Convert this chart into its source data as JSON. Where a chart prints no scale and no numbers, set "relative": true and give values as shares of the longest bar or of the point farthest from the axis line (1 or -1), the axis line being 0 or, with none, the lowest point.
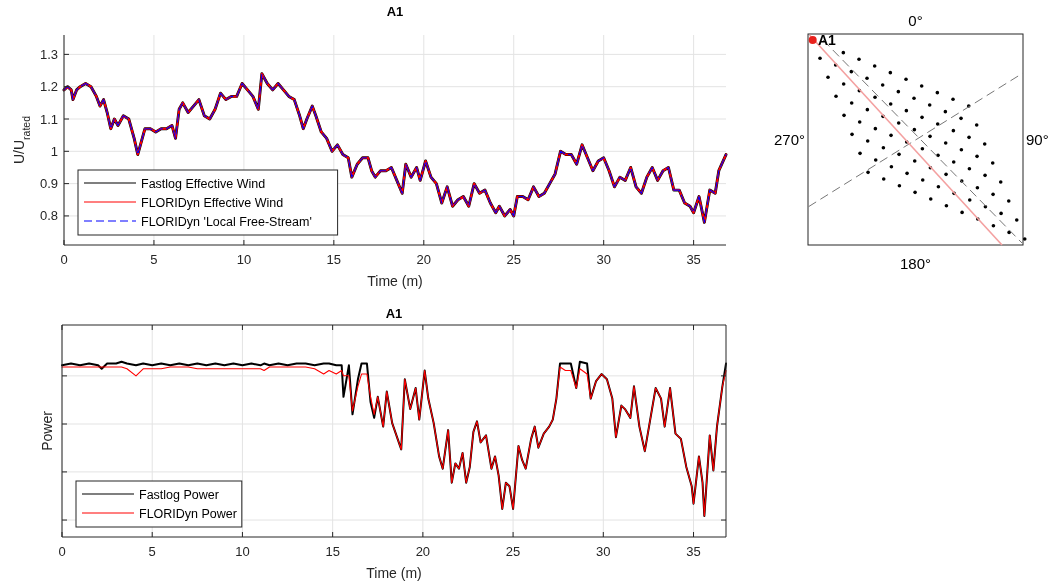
{
  "chart_data": [
    {
      "type": "line",
      "title": "A1",
      "xlabel": "Time (m)",
      "ylabel": "U/U$_{rated}$",
      "xlim": [
        0,
        36.8
      ],
      "ylim": [
        0.71,
        1.36
      ],
      "xticks": [
        0,
        5,
        10,
        15,
        20,
        25,
        30,
        35
      ],
      "yticks": [
        0.8,
        0.9,
        1,
        1.1,
        1.2,
        1.3
      ],
      "grid": true,
      "legend": "bottom left",
      "x": [
        0,
        0.2,
        0.4,
        0.5,
        0.7,
        0.9,
        1.2,
        1.5,
        1.8,
        2.0,
        2.2,
        2.4,
        2.6,
        2.8,
        3.0,
        3.3,
        3.6,
        3.9,
        4.1,
        4.3,
        4.5,
        4.8,
        5.1,
        5.4,
        5.7,
        6.0,
        6.2,
        6.4,
        6.6,
        6.9,
        7.2,
        7.5,
        7.8,
        8.1,
        8.4,
        8.7,
        9.0,
        9.3,
        9.6,
        9.9,
        10.2,
        10.5,
        10.8,
        11.0,
        11.3,
        11.6,
        11.9,
        12.2,
        12.5,
        12.8,
        13.1,
        13.3,
        13.5,
        13.8,
        14.0,
        14.3,
        14.6,
        14.9,
        15.2,
        15.5,
        15.8,
        16.0,
        16.3,
        16.6,
        16.9,
        17.1,
        17.3,
        17.6,
        17.9,
        18.2,
        18.5,
        18.8,
        19.0,
        19.3,
        19.6,
        19.8,
        20.1,
        20.4,
        20.7,
        21.0,
        21.3,
        21.6,
        21.9,
        22.2,
        22.5,
        22.8,
        23.1,
        23.4,
        23.7,
        24.0,
        24.2,
        24.5,
        24.8,
        25.0,
        25.2,
        25.5,
        25.8,
        26.1,
        26.4,
        26.7,
        27.0,
        27.3,
        27.6,
        27.9,
        28.2,
        28.5,
        28.8,
        29.1,
        29.4,
        29.7,
        30.0,
        30.3,
        30.6,
        30.9,
        31.2,
        31.5,
        31.8,
        32.1,
        32.4,
        32.7,
        33.0,
        33.3,
        33.6,
        33.9,
        34.2,
        34.5,
        34.8,
        35.0,
        35.3,
        35.6,
        35.9,
        36.2,
        36.4,
        36.8
      ],
      "series": [
        {
          "name": "Fastlog Effective Wind",
          "color": "#000000",
          "values": [
            1.19,
            1.2,
            1.19,
            1.16,
            1.19,
            1.2,
            1.21,
            1.2,
            1.17,
            1.14,
            1.16,
            1.12,
            1.07,
            1.1,
            1.08,
            1.11,
            1.1,
            1.04,
            0.99,
            1.03,
            1.07,
            1.07,
            1.06,
            1.07,
            1.07,
            1.08,
            1.04,
            1.13,
            1.15,
            1.12,
            1.14,
            1.16,
            1.11,
            1.1,
            1.13,
            1.18,
            1.16,
            1.17,
            1.17,
            1.21,
            1.19,
            1.17,
            1.13,
            1.24,
            1.21,
            1.19,
            1.21,
            1.19,
            1.17,
            1.16,
            1.11,
            1.07,
            1.1,
            1.14,
            1.11,
            1.06,
            1.04,
            1.0,
            1.02,
            0.99,
            0.98,
            0.92,
            0.96,
            0.98,
            0.98,
            0.94,
            0.92,
            0.94,
            0.94,
            0.95,
            0.91,
            0.87,
            0.96,
            0.92,
            0.95,
            0.91,
            0.97,
            0.92,
            0.9,
            0.84,
            0.89,
            0.83,
            0.85,
            0.86,
            0.83,
            0.9,
            0.87,
            0.88,
            0.84,
            0.81,
            0.83,
            0.8,
            0.82,
            0.8,
            0.86,
            0.86,
            0.85,
            0.89,
            0.86,
            0.87,
            0.9,
            0.93,
            1.0,
            0.99,
            0.99,
            0.96,
            1.02,
            0.98,
            0.94,
            0.97,
            0.98,
            0.94,
            0.89,
            0.92,
            0.91,
            0.95,
            0.89,
            0.87,
            0.92,
            0.95,
            0.91,
            0.94,
            0.95,
            0.88,
            0.88,
            0.84,
            0.83,
            0.81,
            0.86,
            0.78,
            0.88,
            0.87,
            0.94,
            0.99
          ]
        },
        {
          "name": "FLORIDyn Effective Wind",
          "color": "#ff0000",
          "values": [
            1.19,
            1.2,
            1.19,
            1.16,
            1.19,
            1.2,
            1.21,
            1.2,
            1.17,
            1.14,
            1.16,
            1.12,
            1.07,
            1.1,
            1.08,
            1.11,
            1.1,
            1.04,
            0.99,
            1.03,
            1.07,
            1.07,
            1.06,
            1.07,
            1.07,
            1.08,
            1.04,
            1.13,
            1.15,
            1.12,
            1.14,
            1.16,
            1.11,
            1.1,
            1.13,
            1.18,
            1.16,
            1.17,
            1.17,
            1.21,
            1.19,
            1.17,
            1.13,
            1.24,
            1.21,
            1.19,
            1.21,
            1.19,
            1.17,
            1.16,
            1.11,
            1.07,
            1.1,
            1.14,
            1.11,
            1.06,
            1.04,
            1.0,
            1.02,
            0.99,
            0.98,
            0.92,
            0.96,
            0.98,
            0.98,
            0.94,
            0.92,
            0.94,
            0.94,
            0.95,
            0.91,
            0.87,
            0.96,
            0.92,
            0.95,
            0.91,
            0.97,
            0.92,
            0.9,
            0.84,
            0.89,
            0.83,
            0.85,
            0.86,
            0.83,
            0.9,
            0.87,
            0.88,
            0.84,
            0.81,
            0.83,
            0.8,
            0.82,
            0.8,
            0.86,
            0.86,
            0.85,
            0.89,
            0.86,
            0.87,
            0.9,
            0.93,
            1.0,
            0.99,
            0.99,
            0.96,
            1.02,
            0.98,
            0.94,
            0.97,
            0.98,
            0.94,
            0.89,
            0.92,
            0.91,
            0.95,
            0.89,
            0.87,
            0.92,
            0.95,
            0.91,
            0.94,
            0.95,
            0.88,
            0.88,
            0.84,
            0.83,
            0.81,
            0.86,
            0.78,
            0.88,
            0.87,
            0.94,
            0.99
          ]
        },
        {
          "name": "FLORIDyn 'Local Free-Stream'",
          "color": "#0000ff",
          "line_style": "dashed",
          "values": [
            1.19,
            1.2,
            1.19,
            1.16,
            1.19,
            1.2,
            1.21,
            1.2,
            1.17,
            1.14,
            1.16,
            1.12,
            1.07,
            1.1,
            1.08,
            1.11,
            1.1,
            1.04,
            0.99,
            1.03,
            1.07,
            1.07,
            1.06,
            1.07,
            1.07,
            1.08,
            1.04,
            1.13,
            1.15,
            1.12,
            1.14,
            1.16,
            1.11,
            1.1,
            1.13,
            1.18,
            1.16,
            1.17,
            1.17,
            1.21,
            1.19,
            1.17,
            1.13,
            1.24,
            1.21,
            1.19,
            1.21,
            1.19,
            1.17,
            1.16,
            1.11,
            1.07,
            1.1,
            1.14,
            1.11,
            1.06,
            1.04,
            1.0,
            1.02,
            0.99,
            0.98,
            0.92,
            0.96,
            0.98,
            0.98,
            0.94,
            0.92,
            0.94,
            0.94,
            0.95,
            0.91,
            0.87,
            0.96,
            0.92,
            0.95,
            0.91,
            0.97,
            0.92,
            0.9,
            0.84,
            0.89,
            0.83,
            0.85,
            0.86,
            0.83,
            0.9,
            0.87,
            0.88,
            0.84,
            0.81,
            0.83,
            0.8,
            0.82,
            0.8,
            0.86,
            0.86,
            0.85,
            0.89,
            0.86,
            0.87,
            0.9,
            0.93,
            1.0,
            0.99,
            0.99,
            0.96,
            1.02,
            0.98,
            0.94,
            0.97,
            0.98,
            0.94,
            0.89,
            0.92,
            0.91,
            0.95,
            0.89,
            0.87,
            0.92,
            0.95,
            0.91,
            0.94,
            0.95,
            0.88,
            0.88,
            0.84,
            0.83,
            0.81,
            0.86,
            0.78,
            0.88,
            0.87,
            0.94,
            0.99
          ]
        }
      ]
    },
    {
      "type": "other",
      "annotations": [
        "0°",
        "90°",
        "180°",
        "270°",
        "A1"
      ]
    },
    {
      "type": "line",
      "title": "A1",
      "xlabel": "Time (m)",
      "ylabel": "Power",
      "relative": true,
      "xlim": [
        0,
        36.8
      ],
      "xticks": [
        0,
        5,
        10,
        15,
        20,
        25,
        30,
        35
      ],
      "grid": true,
      "legend": "bottom left",
      "tick_labels": "x",
      "x": [
        0,
        0.5,
        1,
        1.5,
        2,
        2.2,
        2.5,
        3,
        3.3,
        3.6,
        4.1,
        4.5,
        5,
        5.5,
        6,
        6.5,
        7,
        7.5,
        8,
        8.5,
        9,
        9.5,
        10,
        10.5,
        11,
        11.2,
        11.5,
        12,
        12.5,
        13,
        13.5,
        14,
        14.5,
        14.8,
        15.2,
        15.5,
        15.6,
        15.9,
        16.1,
        16.4,
        16.6,
        16.9,
        17.1,
        17.3,
        17.5,
        17.8,
        18.0,
        18.3,
        18.8,
        19.0,
        19.3,
        19.6,
        19.8,
        20.1,
        20.3,
        20.6,
        20.9,
        21.1,
        21.4,
        21.6,
        21.8,
        22.0,
        22.2,
        22.4,
        22.6,
        22.8,
        23.0,
        23.2,
        23.5,
        23.8,
        24.0,
        24.2,
        24.4,
        24.6,
        24.8,
        25.0,
        25.3,
        25.5,
        25.7,
        26.0,
        26.2,
        26.4,
        26.7,
        27.0,
        27.2,
        27.4,
        27.6,
        27.9,
        28.2,
        28.5,
        28.7,
        29.1,
        29.3,
        29.6,
        29.9,
        30.2,
        30.5,
        30.7,
        31.0,
        31.2,
        31.5,
        31.7,
        32.0,
        32.3,
        32.6,
        32.9,
        33.2,
        33.4,
        33.7,
        34.0,
        34.3,
        34.6,
        34.9,
        35.0,
        35.3,
        35.5,
        35.6,
        35.9,
        36.1,
        36.3,
        36.6,
        36.8
      ],
      "series": [
        {
          "name": "Fastlog Power",
          "color": "#000000",
          "values": [
            0.98,
            0.99,
            0.98,
            0.99,
            0.98,
            0.96,
            0.99,
            0.99,
            1.0,
            0.99,
            0.98,
            0.99,
            0.98,
            0.99,
            0.98,
            0.99,
            0.98,
            0.99,
            0.98,
            0.99,
            0.98,
            0.99,
            0.98,
            0.99,
            0.98,
            0.99,
            0.98,
            0.99,
            0.98,
            0.99,
            0.99,
            0.98,
            0.99,
            0.99,
            0.98,
            0.98,
            0.8,
            0.98,
            0.7,
            0.9,
            0.99,
            0.99,
            0.77,
            0.68,
            0.8,
            0.63,
            0.83,
            0.65,
            0.5,
            0.9,
            0.73,
            0.85,
            0.67,
            0.95,
            0.79,
            0.65,
            0.46,
            0.39,
            0.61,
            0.31,
            0.42,
            0.39,
            0.48,
            0.31,
            0.4,
            0.6,
            0.66,
            0.54,
            0.58,
            0.39,
            0.46,
            0.35,
            0.16,
            0.31,
            0.29,
            0.16,
            0.52,
            0.44,
            0.39,
            0.56,
            0.63,
            0.51,
            0.59,
            0.63,
            0.67,
            0.79,
            0.99,
            0.99,
            0.99,
            0.85,
            1.0,
            0.99,
            0.79,
            0.89,
            0.93,
            0.9,
            0.79,
            0.57,
            0.75,
            0.73,
            0.68,
            0.86,
            0.63,
            0.49,
            0.67,
            0.85,
            0.79,
            0.63,
            0.85,
            0.59,
            0.56,
            0.4,
            0.29,
            0.19,
            0.46,
            0.31,
            0.12,
            0.58,
            0.38,
            0.63,
            0.86,
            0.99
          ]
        },
        {
          "name": "FLORIDyn Power",
          "color": "#ff0000",
          "values": [
            0.97,
            0.97,
            0.97,
            0.97,
            0.97,
            0.97,
            0.97,
            0.97,
            0.97,
            0.96,
            0.92,
            0.96,
            0.96,
            0.96,
            0.97,
            0.97,
            0.97,
            0.96,
            0.96,
            0.96,
            0.96,
            0.96,
            0.96,
            0.96,
            0.96,
            0.95,
            0.97,
            0.97,
            0.97,
            0.97,
            0.97,
            0.96,
            0.93,
            0.95,
            0.93,
            0.95,
            0.92,
            0.92,
            0.72,
            0.86,
            0.93,
            0.93,
            0.8,
            0.7,
            0.8,
            0.63,
            0.83,
            0.65,
            0.5,
            0.9,
            0.73,
            0.85,
            0.67,
            0.95,
            0.79,
            0.65,
            0.46,
            0.39,
            0.61,
            0.31,
            0.42,
            0.39,
            0.48,
            0.31,
            0.4,
            0.6,
            0.66,
            0.54,
            0.58,
            0.39,
            0.46,
            0.35,
            0.16,
            0.31,
            0.29,
            0.16,
            0.52,
            0.44,
            0.39,
            0.56,
            0.63,
            0.51,
            0.59,
            0.63,
            0.67,
            0.79,
            0.97,
            0.95,
            0.95,
            0.85,
            0.96,
            0.93,
            0.79,
            0.89,
            0.93,
            0.9,
            0.79,
            0.57,
            0.75,
            0.73,
            0.68,
            0.86,
            0.63,
            0.49,
            0.67,
            0.85,
            0.79,
            0.63,
            0.85,
            0.59,
            0.56,
            0.4,
            0.29,
            0.19,
            0.46,
            0.31,
            0.12,
            0.58,
            0.38,
            0.63,
            0.86,
            0.95
          ]
        }
      ]
    }
  ]
}
